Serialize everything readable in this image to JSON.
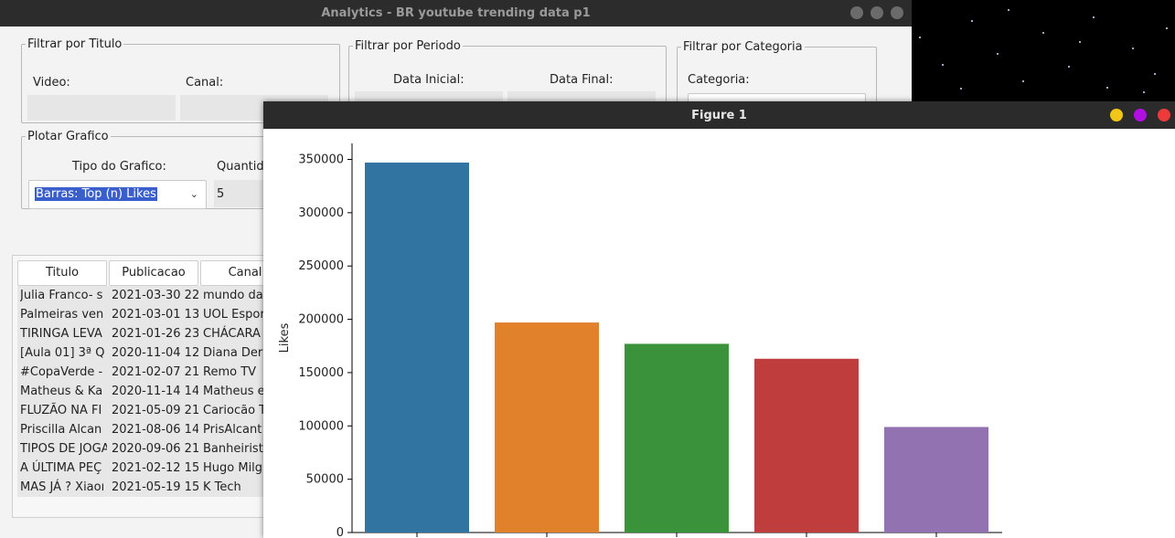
{
  "main_window": {
    "title": "Analytics - BR youtube trending data p1",
    "filter_title": {
      "legend": "Filtrar por Titulo",
      "video_label": "Video:",
      "channel_label": "Canal:"
    },
    "filter_period": {
      "legend": "Filtrar por Periodo",
      "start_label": "Data Inicial:",
      "end_label": "Data Final:"
    },
    "filter_category": {
      "legend": "Filtrar por Categoria",
      "category_label": "Categoria:"
    },
    "plot": {
      "legend": "Plotar Grafico",
      "type_label": "Tipo do Grafico:",
      "type_value": "Barras: Top (n) Likes",
      "qty_label": "Quantid",
      "qty_value": "5"
    },
    "table": {
      "headers": [
        "Titulo",
        "Publicacao",
        "Canal"
      ],
      "rows": [
        [
          "Julia Franco- s",
          "2021-03-30 22",
          "mundo da"
        ],
        [
          "Palmeiras ven",
          "2021-03-01 13",
          "UOL Espor"
        ],
        [
          "TIRINGA LEVA",
          "2021-01-26 23",
          "CHÁCARA"
        ],
        [
          "[Aula 01] 3ª Q",
          "2020-11-04 12",
          "Diana Der"
        ],
        [
          "#CopaVerde -",
          "2021-02-07 21",
          "Remo TV"
        ],
        [
          "Matheus & Ka",
          "2020-11-14 14",
          "Matheus e"
        ],
        [
          "FLUZÃO NA FI",
          "2021-05-09 21",
          "Cariocão T"
        ],
        [
          "Priscilla Alcan",
          "2021-08-06 14",
          "PrisAlcant"
        ],
        [
          "TIPOS DE JOGA",
          "2020-09-06 21",
          "Banheirist"
        ],
        [
          "A ÚLTIMA PEÇ",
          "2021-02-12 15",
          "Hugo Milg"
        ],
        [
          "MAS JÁ ? Xiaoı",
          "2021-05-19 15",
          "K Tech"
        ]
      ]
    }
  },
  "figure_window": {
    "title": "Figure 1",
    "button_colors": [
      "#f2c618",
      "#b10fe0",
      "#ee3a3a"
    ]
  },
  "chart_data": {
    "type": "bar",
    "title": "",
    "xlabel": "",
    "ylabel": "Likes",
    "categories": [
      "",
      "",
      "",
      "",
      ""
    ],
    "values": [
      347000,
      197000,
      177000,
      163000,
      99000
    ],
    "colors": [
      "#3274a1",
      "#e1812c",
      "#3a923a",
      "#c03d3e",
      "#9372b2"
    ],
    "ylim": [
      0,
      365000
    ],
    "yticks": [
      0,
      50000,
      100000,
      150000,
      200000,
      250000,
      300000,
      350000
    ],
    "grid": false
  }
}
